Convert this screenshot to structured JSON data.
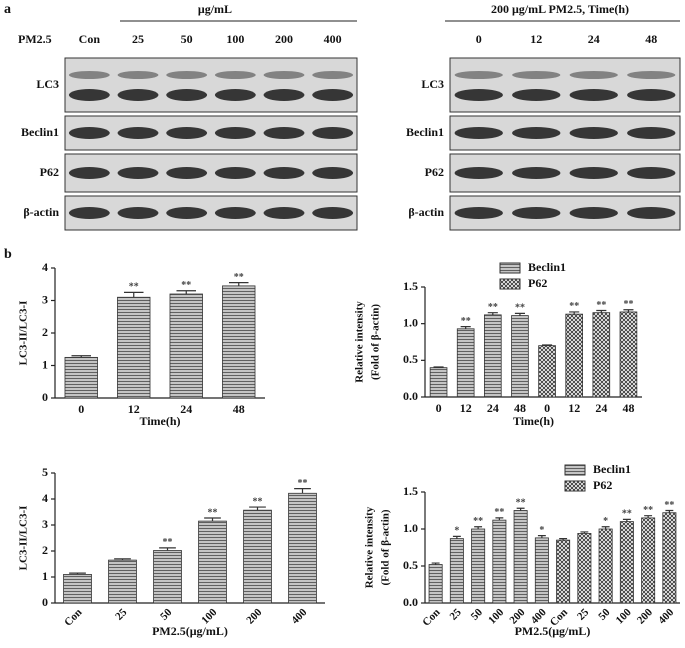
{
  "panel_a": {
    "label": "a",
    "left": {
      "header": "μg/mL",
      "lane_title": "PM2.5",
      "lanes": [
        "Con",
        "25",
        "50",
        "100",
        "200",
        "400"
      ],
      "rows": [
        "LC3",
        "Beclin1",
        "P62",
        "β-actin"
      ]
    },
    "right": {
      "header": "200 μg/mL PM2.5, Time(h)",
      "lanes": [
        "0",
        "12",
        "24",
        "48"
      ],
      "rows": [
        "LC3",
        "Beclin1",
        "P62",
        "β-actin"
      ]
    }
  },
  "panel_b": {
    "label": "b"
  },
  "chart_data": [
    {
      "type": "bar",
      "ylabel": [
        "LC3-II/LC3-I"
      ],
      "xlabel": "Time(h)",
      "categories": [
        "0",
        "12",
        "24",
        "48"
      ],
      "color": "#333333",
      "values": [
        1.25,
        3.1,
        3.2,
        3.45
      ],
      "errors": [
        0.05,
        0.15,
        0.1,
        0.1
      ],
      "stars": [
        null,
        "**",
        "**",
        "**"
      ],
      "ylim": [
        0,
        4
      ],
      "yticks": [
        0,
        1,
        2,
        3,
        4
      ]
    },
    {
      "type": "bar",
      "ylabel": [
        "Relative intensity",
        "(Fold of β-actin)"
      ],
      "xlabel": "Time(h)",
      "categories": [
        "0",
        "12",
        "24",
        "48"
      ],
      "series": [
        {
          "name": "Beclin1",
          "color": "#333333",
          "values": [
            0.4,
            0.93,
            1.12,
            1.11
          ],
          "errors": [
            0.01,
            0.03,
            0.03,
            0.03
          ],
          "stars": [
            null,
            "**",
            "**",
            "**"
          ]
        },
        {
          "name": "P62",
          "color": "#333333",
          "values": [
            0.7,
            1.13,
            1.15,
            1.16
          ],
          "errors": [
            0.01,
            0.03,
            0.03,
            0.03
          ],
          "stars": [
            null,
            "**",
            "**",
            "**"
          ]
        }
      ],
      "ylim": [
        0,
        1.5
      ],
      "yticks": [
        {
          "value": 0,
          "label": "0.0"
        },
        {
          "value": 0.5,
          "label": "0.5"
        },
        {
          "value": 1,
          "label": "1.0"
        },
        {
          "value": 1.5,
          "label": "1.5"
        }
      ]
    },
    {
      "type": "bar",
      "ylabel": [
        "LC3-II/LC3-I"
      ],
      "xlabel": "PM2.5(μg/mL)",
      "categories": [
        "Con",
        "25",
        "50",
        "100",
        "200",
        "400"
      ],
      "color": "#333333",
      "values": [
        1.1,
        1.65,
        2.02,
        3.15,
        3.57,
        4.22
      ],
      "errors": [
        0.05,
        0.05,
        0.1,
        0.12,
        0.12,
        0.18
      ],
      "stars": [
        null,
        null,
        "**",
        "**",
        "**",
        "**"
      ],
      "ylim": [
        0,
        5
      ],
      "yticks": [
        0,
        1,
        2,
        3,
        4,
        5
      ]
    },
    {
      "type": "bar",
      "ylabel": [
        "Relative intensity",
        "(Fold of β-actin)"
      ],
      "xlabel": "PM2.5(μg/mL)",
      "categories": [
        "Con",
        "25",
        "50",
        "100",
        "200",
        "400"
      ],
      "series": [
        {
          "name": "Beclin1",
          "color": "#333333",
          "values": [
            0.52,
            0.87,
            1.0,
            1.12,
            1.25,
            0.88
          ],
          "errors": [
            0.02,
            0.03,
            0.03,
            0.03,
            0.03,
            0.03
          ],
          "stars": [
            null,
            "*",
            "**",
            "**",
            "**",
            "*"
          ]
        },
        {
          "name": "P62",
          "color": "#333333",
          "values": [
            0.85,
            0.94,
            1.0,
            1.1,
            1.15,
            1.22
          ],
          "errors": [
            0.02,
            0.02,
            0.03,
            0.03,
            0.03,
            0.03
          ],
          "stars": [
            null,
            null,
            "*",
            "**",
            "**",
            "**"
          ]
        }
      ],
      "ylim": [
        0,
        1.5
      ],
      "yticks": [
        {
          "value": 0,
          "label": "0.0"
        },
        {
          "value": 0.5,
          "label": "0.5"
        },
        {
          "value": 1,
          "label": "1.0"
        },
        {
          "value": 1.5,
          "label": "1.5"
        }
      ]
    }
  ]
}
